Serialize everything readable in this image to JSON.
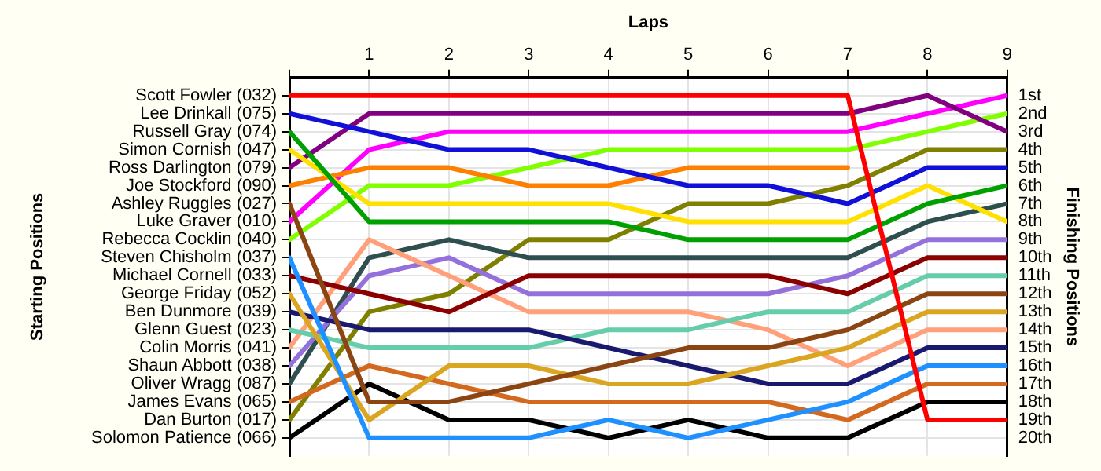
{
  "chart_data": {
    "type": "line",
    "xlabel": "Laps",
    "y2label": "Finishing Positions",
    "x": [
      0,
      1,
      2,
      3,
      4,
      5,
      6,
      7,
      8,
      9
    ],
    "xlim": [
      0,
      9
    ],
    "xticks": [
      {
        "value": 0,
        "label": null
      },
      1,
      2,
      3,
      4,
      5,
      6,
      7,
      8,
      9
    ],
    "y2lim": [
      21,
      0
    ],
    "y2ticks": [
      {
        "value": 1,
        "label": "1st"
      },
      {
        "value": 2,
        "label": "2nd"
      },
      {
        "value": 3,
        "label": "3rd"
      },
      {
        "value": 4,
        "label": "4th"
      },
      {
        "value": 5,
        "label": "5th"
      },
      {
        "value": 6,
        "label": "6th"
      },
      {
        "value": 7,
        "label": "7th"
      },
      {
        "value": 8,
        "label": "8th"
      },
      {
        "value": 9,
        "label": "9th"
      },
      {
        "value": 10,
        "label": "10th"
      },
      {
        "value": 11,
        "label": "11th"
      },
      {
        "value": 12,
        "label": "12th"
      },
      {
        "value": 13,
        "label": "13th"
      },
      {
        "value": 14,
        "label": "14th"
      },
      {
        "value": 15,
        "label": "15th"
      },
      {
        "value": 16,
        "label": "16th"
      },
      {
        "value": 17,
        "label": "17th"
      },
      {
        "value": 18,
        "label": "18th"
      },
      {
        "value": 19,
        "label": "19th"
      },
      {
        "value": 20,
        "label": "20th"
      }
    ],
    "annotations": [
      "Scott Fowler (032)",
      "Lee Drinkall (075)",
      "Russell Gray (074)",
      "Simon Cornish (047)",
      "Ross Darlington (079)",
      "Joe Stockford (090)",
      "Ashley Ruggles (027)",
      "Luke Graver (010)",
      "Rebecca Cocklin (040)",
      "Steven Chisholm (037)",
      "Michael Cornell (033)",
      "George Friday (052)",
      "Ben Dunmore (039)",
      "Glenn Guest (023)",
      "Colin Morris (041)",
      "Shaun Abbott (038)",
      "Oliver Wragg (087)",
      "James Evans (065)",
      "Dan Burton (017)",
      "Solomon Patience (066)",
      "Starting Positions"
    ],
    "grid": true,
    "legend": false,
    "marker": "none",
    "line_style": "solid",
    "series": [
      {
        "color": "#ff0000",
        "axis": "y2",
        "values": [
          1,
          1,
          1,
          1,
          1,
          1,
          1,
          1,
          19,
          19
        ]
      },
      {
        "color": "#1010d8",
        "axis": "y2",
        "values": [
          2,
          3,
          4,
          4,
          5,
          6,
          6,
          7,
          5,
          5
        ]
      },
      {
        "color": "#00a000",
        "axis": "y2",
        "values": [
          3,
          8,
          8,
          8,
          8,
          9,
          9,
          9,
          7,
          6
        ]
      },
      {
        "color": "#ffe000",
        "axis": "y2",
        "values": [
          4,
          7,
          7,
          7,
          7,
          8,
          8,
          8,
          6,
          8
        ]
      },
      {
        "color": "#800080",
        "axis": "y2",
        "values": [
          5,
          2,
          2,
          2,
          2,
          2,
          2,
          2,
          1,
          3
        ]
      },
      {
        "color": "#ff8000",
        "axis": "y2",
        "values": [
          6,
          5,
          5,
          6,
          6,
          5,
          5,
          5,
          null,
          null
        ]
      },
      {
        "color": "#8b4513",
        "axis": "y2",
        "values": [
          7,
          18,
          18,
          17,
          16,
          15,
          15,
          14,
          12,
          12
        ]
      },
      {
        "color": "#ff00ff",
        "axis": "y2",
        "values": [
          8,
          4,
          3,
          3,
          3,
          3,
          3,
          3,
          2,
          1
        ]
      },
      {
        "color": "#80ff00",
        "axis": "y2",
        "values": [
          9,
          6,
          6,
          5,
          4,
          4,
          4,
          4,
          3,
          2
        ]
      },
      {
        "color": "#1e90ff",
        "axis": "y2",
        "values": [
          10,
          20,
          20,
          20,
          19,
          20,
          19,
          18,
          16,
          16
        ]
      },
      {
        "color": "#8b0000",
        "axis": "y2",
        "values": [
          11,
          12,
          13,
          11,
          11,
          11,
          11,
          12,
          10,
          10
        ]
      },
      {
        "color": "#daa520",
        "axis": "y2",
        "values": [
          12,
          19,
          16,
          16,
          17,
          17,
          16,
          15,
          13,
          13
        ]
      },
      {
        "color": "#191970",
        "axis": "y2",
        "values": [
          13,
          14,
          14,
          14,
          15,
          16,
          17,
          17,
          15,
          15
        ]
      },
      {
        "color": "#66cdaa",
        "axis": "y2",
        "values": [
          14,
          15,
          15,
          15,
          14,
          14,
          13,
          13,
          11,
          11
        ]
      },
      {
        "color": "#ffa07a",
        "axis": "y2",
        "values": [
          15,
          9,
          11,
          13,
          13,
          13,
          14,
          16,
          14,
          14
        ]
      },
      {
        "color": "#9370db",
        "axis": "y2",
        "values": [
          16,
          11,
          10,
          12,
          12,
          12,
          12,
          11,
          9,
          9
        ]
      },
      {
        "color": "#2f4f4f",
        "axis": "y2",
        "values": [
          17,
          10,
          9,
          10,
          10,
          10,
          10,
          10,
          8,
          7
        ]
      },
      {
        "color": "#d2691e",
        "axis": "y2",
        "values": [
          18,
          16,
          17,
          18,
          18,
          18,
          18,
          19,
          17,
          17
        ]
      },
      {
        "color": "#808000",
        "axis": "y2",
        "values": [
          19,
          13,
          12,
          9,
          9,
          7,
          7,
          6,
          4,
          4
        ]
      },
      {
        "color": "#000000",
        "axis": "y2",
        "values": [
          20,
          17,
          19,
          19,
          20,
          19,
          20,
          20,
          18,
          18
        ]
      }
    ]
  }
}
